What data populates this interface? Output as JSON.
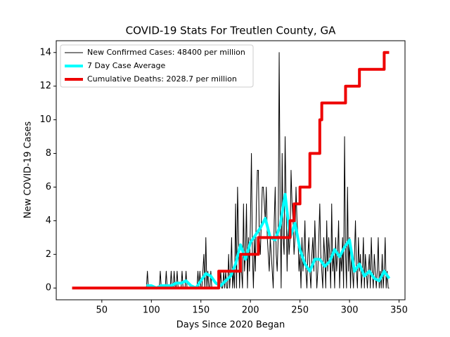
{
  "chart_data": {
    "type": "line",
    "title": "COVID-19 Stats For Treutlen County, GA",
    "xlabel": "Days Since 2020 Began",
    "ylabel": "New COVID-19 Cases",
    "xlim": [
      4,
      356
    ],
    "xticks": [
      50,
      100,
      150,
      200,
      250,
      300,
      350
    ],
    "ylim": [
      -0.7,
      14.7
    ],
    "yticks": [
      0,
      2,
      4,
      6,
      8,
      10,
      12,
      14
    ],
    "legend": "upper left",
    "series": [
      {
        "name": "New Confirmed Cases: 48400 per million",
        "color": "#000000",
        "width": 1,
        "x": [
          95,
          96,
          97,
          98,
          99,
          100,
          101,
          102,
          103,
          104,
          105,
          106,
          107,
          108,
          109,
          110,
          111,
          112,
          113,
          114,
          115,
          116,
          117,
          118,
          119,
          120,
          121,
          122,
          123,
          124,
          125,
          126,
          127,
          128,
          129,
          130,
          131,
          132,
          133,
          134,
          135,
          136,
          137,
          138,
          139,
          140,
          141,
          142,
          143,
          144,
          145,
          146,
          147,
          148,
          149,
          150,
          151,
          152,
          153,
          154,
          155,
          156,
          157,
          158,
          159,
          160,
          161,
          162,
          163,
          164,
          165,
          166,
          167,
          168,
          169,
          170,
          171,
          172,
          173,
          174,
          175,
          176,
          177,
          178,
          179,
          180,
          181,
          182,
          183,
          184,
          185,
          186,
          187,
          188,
          189,
          190,
          191,
          192,
          193,
          194,
          195,
          196,
          197,
          198,
          199,
          200,
          201,
          202,
          203,
          204,
          205,
          206,
          207,
          208,
          209,
          210,
          211,
          212,
          213,
          214,
          215,
          216,
          217,
          218,
          219,
          220,
          221,
          222,
          223,
          224,
          225,
          226,
          227,
          228,
          229,
          230,
          231,
          232,
          233,
          234,
          235,
          236,
          237,
          238,
          239,
          240,
          241,
          242,
          243,
          244,
          245,
          246,
          247,
          248,
          249,
          250,
          251,
          252,
          253,
          254,
          255,
          256,
          257,
          258,
          259,
          260,
          261,
          262,
          263,
          264,
          265,
          266,
          267,
          268,
          269,
          270,
          271,
          272,
          273,
          274,
          275,
          276,
          277,
          278,
          279,
          280,
          281,
          282,
          283,
          284,
          285,
          286,
          287,
          288,
          289,
          290,
          291,
          292,
          293,
          294,
          295,
          296,
          297,
          298,
          299,
          300,
          301,
          302,
          303,
          304,
          305,
          306,
          307,
          308,
          309,
          310,
          311,
          312,
          313,
          314,
          315,
          316,
          317,
          318,
          319,
          320,
          321,
          322,
          323,
          324,
          325,
          326,
          327,
          328,
          329,
          330,
          331,
          332,
          333,
          334,
          335,
          336,
          337,
          338,
          339,
          340
        ],
        "values": [
          0,
          1,
          0,
          0,
          0,
          0,
          0,
          0,
          0,
          0,
          0,
          0,
          0,
          0,
          1,
          0,
          0,
          0,
          0,
          0,
          1,
          0,
          0,
          0,
          0,
          1,
          0,
          0,
          1,
          0,
          0,
          1,
          0,
          0,
          0,
          0,
          1,
          0,
          0,
          0,
          1,
          0,
          0,
          0,
          0,
          0,
          0,
          0,
          0,
          0,
          0,
          0,
          1,
          0,
          1,
          0,
          0,
          1,
          2,
          0,
          3,
          0,
          1,
          0,
          0,
          1,
          0,
          0,
          0,
          0,
          0,
          0,
          0,
          0,
          0,
          1,
          0,
          0,
          1,
          0,
          1,
          0,
          0,
          2,
          0,
          1,
          3,
          0,
          1,
          0,
          5,
          0,
          6,
          3,
          0,
          2,
          1,
          0,
          5,
          1,
          2,
          5,
          0,
          3,
          1,
          4,
          8,
          2,
          0,
          3,
          1,
          5,
          7,
          7,
          3,
          2,
          4,
          6,
          6,
          5,
          4,
          6,
          3,
          2,
          1,
          3,
          2,
          1,
          0,
          4,
          6,
          2,
          1,
          3,
          14,
          5,
          0,
          8,
          3,
          2,
          9,
          5,
          1,
          4,
          2,
          3,
          7,
          5,
          4,
          2,
          3,
          6,
          4,
          3,
          1,
          2,
          0,
          3,
          1,
          2,
          4,
          1,
          0,
          2,
          3,
          1,
          0,
          2,
          3,
          1,
          4,
          2,
          0,
          1,
          3,
          5,
          2,
          1,
          0,
          3,
          2,
          0,
          4,
          1,
          3,
          2,
          0,
          5,
          1,
          2,
          0,
          3,
          1,
          2,
          4,
          0,
          2,
          1,
          3,
          0,
          9,
          2,
          0,
          6,
          1,
          3,
          0,
          2,
          1,
          0,
          2,
          4,
          1,
          0,
          3,
          1,
          2,
          0,
          1,
          3,
          0,
          2,
          1,
          0,
          1,
          2,
          0,
          3,
          1,
          0,
          2,
          1,
          0,
          1,
          3,
          0,
          1,
          0,
          2,
          0,
          1,
          3,
          0,
          1,
          0,
          0
        ]
      },
      {
        "name": "7 Day Case Average",
        "color": "#00ffff",
        "width": 4,
        "x": [
          95,
          100,
          105,
          110,
          115,
          120,
          125,
          130,
          135,
          140,
          145,
          150,
          155,
          160,
          165,
          170,
          175,
          180,
          185,
          190,
          195,
          200,
          205,
          210,
          215,
          220,
          225,
          230,
          235,
          240,
          245,
          250,
          255,
          260,
          265,
          270,
          275,
          280,
          285,
          290,
          295,
          300,
          305,
          310,
          315,
          320,
          325,
          330,
          335,
          340
        ],
        "values": [
          0.14,
          0.14,
          0,
          0.14,
          0.14,
          0.14,
          0.29,
          0.29,
          0.43,
          0.14,
          0,
          0.43,
          0.86,
          0.71,
          0.29,
          0.14,
          0.43,
          0.71,
          1.43,
          2.57,
          1.71,
          2.71,
          3.14,
          3.57,
          4.14,
          3,
          2.86,
          3.71,
          5.57,
          3,
          3.86,
          2.29,
          1.43,
          1,
          1.71,
          1.71,
          1.29,
          1.57,
          2.29,
          1.86,
          2.43,
          2.86,
          1,
          1.43,
          0.71,
          1,
          0.57,
          0.43,
          1,
          0.57
        ]
      },
      {
        "name": "Cumulative Deaths: 2028.7 per million",
        "color": "#ee0000",
        "width": 4,
        "x": [
          20,
          168,
          168,
          190,
          190,
          208,
          208,
          240,
          240,
          244,
          244,
          250,
          250,
          260,
          260,
          270,
          270,
          272,
          272,
          296,
          296,
          310,
          310,
          335,
          335,
          340
        ],
        "values": [
          0,
          0,
          1,
          1,
          2,
          2,
          3,
          3,
          4,
          4,
          5,
          5,
          6,
          6,
          8,
          8,
          10,
          10,
          11,
          11,
          12,
          12,
          13,
          13,
          14,
          14
        ]
      }
    ]
  }
}
